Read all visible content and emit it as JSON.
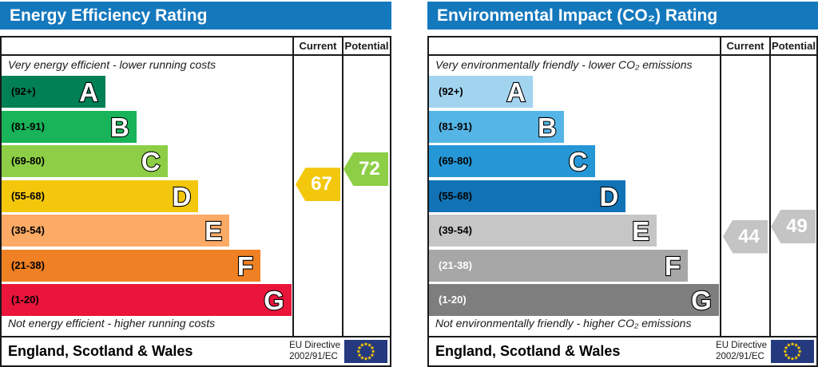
{
  "colors": {
    "header_bar": "#1478bd",
    "table_border": "#1a1a1a",
    "flag_field": "#24397e",
    "flag_stars": "#ffcc00"
  },
  "chart_data": [
    {
      "type": "bar",
      "id": "energy-efficiency",
      "title": "Energy Efficiency Rating",
      "columns": {
        "current_label": "Current",
        "potential_label": "Potential"
      },
      "top_caption": "Very energy efficient - lower running costs",
      "bottom_caption": "Not energy efficient - higher running costs",
      "bands": [
        {
          "letter": "A",
          "range_label": "(92+)",
          "min": 92,
          "max": 100,
          "color": "#008054",
          "label_color": "#000000"
        },
        {
          "letter": "B",
          "range_label": "(81-91)",
          "min": 81,
          "max": 91,
          "color": "#19b459",
          "label_color": "#000000"
        },
        {
          "letter": "C",
          "range_label": "(69-80)",
          "min": 69,
          "max": 80,
          "color": "#8dce46",
          "label_color": "#000000"
        },
        {
          "letter": "D",
          "range_label": "(55-68)",
          "min": 55,
          "max": 68,
          "color": "#f3c70c",
          "label_color": "#000000"
        },
        {
          "letter": "E",
          "range_label": "(39-54)",
          "min": 39,
          "max": 54,
          "color": "#fcaa65",
          "label_color": "#000000"
        },
        {
          "letter": "F",
          "range_label": "(21-38)",
          "min": 21,
          "max": 38,
          "color": "#ef8023",
          "label_color": "#000000"
        },
        {
          "letter": "G",
          "range_label": "(1-20)",
          "min": 1,
          "max": 20,
          "color": "#e9153b",
          "label_color": "#000000"
        }
      ],
      "current": {
        "value": 67,
        "color": "#f3c70c"
      },
      "potential": {
        "value": 72,
        "color": "#8dce46"
      },
      "footer": {
        "region": "England, Scotland & Wales",
        "directive_line1": "EU Directive",
        "directive_line2": "2002/91/EC"
      }
    },
    {
      "type": "bar",
      "id": "environmental-impact-co2",
      "title": "Environmental Impact (CO₂) Rating",
      "columns": {
        "current_label": "Current",
        "potential_label": "Potential"
      },
      "top_caption": "Very environmentally friendly - lower CO₂ emissions",
      "bottom_caption": "Not environmentally friendly - higher CO₂ emissions",
      "bands": [
        {
          "letter": "A",
          "range_label": "(92+)",
          "min": 92,
          "max": 100,
          "color": "#a2d4ef",
          "label_color": "#000000"
        },
        {
          "letter": "B",
          "range_label": "(81-91)",
          "min": 81,
          "max": 91,
          "color": "#55b5e6",
          "label_color": "#000000"
        },
        {
          "letter": "C",
          "range_label": "(69-80)",
          "min": 69,
          "max": 80,
          "color": "#2697d6",
          "label_color": "#000000"
        },
        {
          "letter": "D",
          "range_label": "(55-68)",
          "min": 55,
          "max": 68,
          "color": "#1173b5",
          "label_color": "#000000"
        },
        {
          "letter": "E",
          "range_label": "(39-54)",
          "min": 39,
          "max": 54,
          "color": "#c6c6c6",
          "label_color": "#000000"
        },
        {
          "letter": "F",
          "range_label": "(21-38)",
          "min": 21,
          "max": 38,
          "color": "#a7a7a7",
          "label_color": "#ffffff"
        },
        {
          "letter": "G",
          "range_label": "(1-20)",
          "min": 1,
          "max": 20,
          "color": "#7e7e7e",
          "label_color": "#ffffff"
        }
      ],
      "current": {
        "value": 44,
        "color": "#c4c4c4"
      },
      "potential": {
        "value": 49,
        "color": "#c4c4c4"
      },
      "footer": {
        "region": "England, Scotland & Wales",
        "directive_line1": "EU Directive",
        "directive_line2": "2002/91/EC"
      }
    }
  ]
}
